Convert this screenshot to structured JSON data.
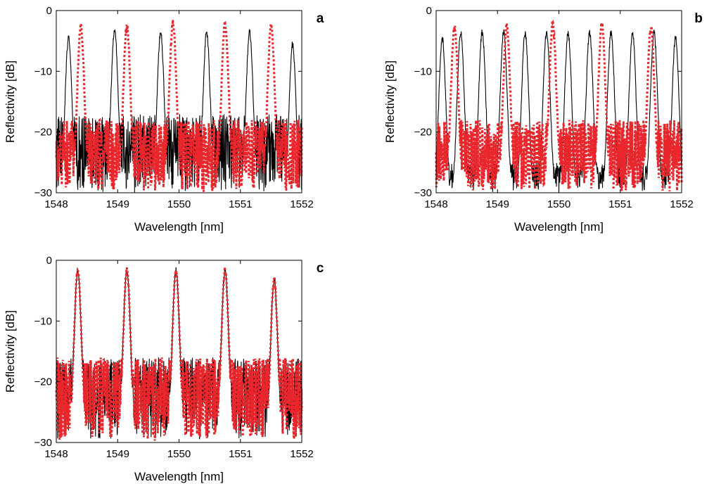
{
  "colors": {
    "measured": "#000000",
    "reconstructed": "#e8262c",
    "axes": "#000000",
    "background": "#ffffff"
  },
  "chart_data": [
    {
      "panel": "a",
      "type": "line",
      "xlabel": "Wavelength [nm]",
      "ylabel": "Reflectivity [dB]",
      "xlim": [
        1548,
        1552
      ],
      "ylim": [
        -30,
        0
      ],
      "xticks": [
        "1548",
        "1549",
        "1550",
        "1551",
        "1552"
      ],
      "yticks": [
        "-30",
        "-20",
        "-10",
        "0"
      ],
      "grid": false,
      "series": [
        {
          "style": "solid",
          "color": "#000000",
          "peaks": [
            {
              "x": 1548.2,
              "y": -4
            },
            {
              "x": 1548.95,
              "y": -2.5
            },
            {
              "x": 1549.7,
              "y": -3
            },
            {
              "x": 1550.45,
              "y": -3
            },
            {
              "x": 1551.15,
              "y": -3
            },
            {
              "x": 1551.85,
              "y": -5
            }
          ],
          "floor": [
            -30,
            -17
          ]
        },
        {
          "style": "dotted",
          "color": "#e8262c",
          "peaks": [
            {
              "x": 1548.4,
              "y": -2
            },
            {
              "x": 1549.15,
              "y": -2
            },
            {
              "x": 1549.9,
              "y": -1.5
            },
            {
              "x": 1550.75,
              "y": -1.5
            },
            {
              "x": 1551.5,
              "y": -2
            }
          ],
          "floor": [
            -30,
            -18
          ]
        }
      ]
    },
    {
      "panel": "b",
      "type": "line",
      "xlabel": "Wavelength [nm]",
      "ylabel": "Reflectivity [dB]",
      "xlim": [
        1548,
        1552
      ],
      "ylim": [
        -30,
        0
      ],
      "xticks": [
        "1548",
        "1549",
        "1550",
        "1551",
        "1552"
      ],
      "yticks": [
        "-30",
        "-20",
        "-10",
        "0"
      ],
      "grid": false,
      "series": [
        {
          "style": "solid",
          "color": "#000000",
          "peaks": [
            {
              "x": 1548.1,
              "y": -4
            },
            {
              "x": 1548.4,
              "y": -3
            },
            {
              "x": 1548.75,
              "y": -3
            },
            {
              "x": 1549.1,
              "y": -3
            },
            {
              "x": 1549.45,
              "y": -3
            },
            {
              "x": 1549.8,
              "y": -3
            },
            {
              "x": 1550.15,
              "y": -3
            },
            {
              "x": 1550.5,
              "y": -3
            },
            {
              "x": 1550.85,
              "y": -3
            },
            {
              "x": 1551.2,
              "y": -3
            },
            {
              "x": 1551.55,
              "y": -3
            },
            {
              "x": 1551.9,
              "y": -4
            }
          ],
          "floor": [
            -30,
            -25
          ]
        },
        {
          "style": "dotted",
          "color": "#e8262c",
          "peaks": [
            {
              "x": 1548.3,
              "y": -2
            },
            {
              "x": 1549.15,
              "y": -2
            },
            {
              "x": 1549.9,
              "y": -1.5
            },
            {
              "x": 1550.7,
              "y": -1.5
            },
            {
              "x": 1551.5,
              "y": -2
            }
          ],
          "floor": [
            -30,
            -18
          ]
        }
      ]
    },
    {
      "panel": "c",
      "type": "line",
      "xlabel": "Wavelength [nm]",
      "ylabel": "Reflectivity [dB]",
      "xlim": [
        1548,
        1552
      ],
      "ylim": [
        -30,
        0
      ],
      "xticks": [
        "1548",
        "1549",
        "1550",
        "1551",
        "1552"
      ],
      "yticks": [
        "-30",
        "-20",
        "-10",
        "0"
      ],
      "grid": false,
      "series": [
        {
          "style": "solid",
          "color": "#000000",
          "peaks": [
            {
              "x": 1548.35,
              "y": -1
            },
            {
              "x": 1549.15,
              "y": -1
            },
            {
              "x": 1549.95,
              "y": -1
            },
            {
              "x": 1550.75,
              "y": -1
            },
            {
              "x": 1551.55,
              "y": -2.5
            }
          ],
          "floor": [
            -30,
            -16
          ]
        },
        {
          "style": "dotted",
          "color": "#e8262c",
          "peaks": [
            {
              "x": 1548.35,
              "y": -1
            },
            {
              "x": 1549.15,
              "y": -1
            },
            {
              "x": 1549.95,
              "y": -1
            },
            {
              "x": 1550.75,
              "y": -1
            },
            {
              "x": 1551.55,
              "y": -2.5
            }
          ],
          "floor": [
            -30,
            -16
          ]
        }
      ]
    }
  ]
}
